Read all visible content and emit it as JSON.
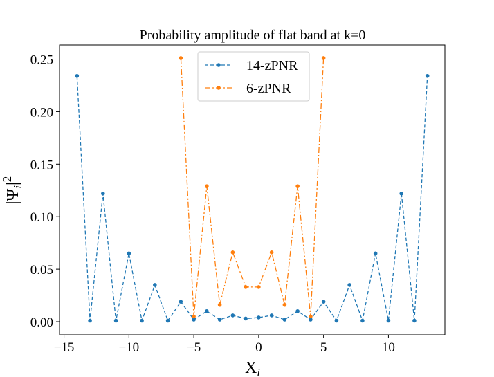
{
  "chart_data": {
    "type": "line",
    "title": "Probability amplitude of flat band at k=0",
    "xlabel": "X",
    "xlabel_sub": "i",
    "ylabel_main": "|Ψ",
    "ylabel_sub": "i",
    "ylabel_pipe": "|",
    "ylabel_sup": "2",
    "xlim": [
      -15.35,
      14.35
    ],
    "ylim": [
      -0.0125,
      0.2635
    ],
    "xticks": [
      -15,
      -10,
      -5,
      0,
      5,
      10
    ],
    "xtick_labels": [
      "−15",
      "−10",
      "−5",
      "0",
      "5",
      "10"
    ],
    "yticks": [
      0.0,
      0.05,
      0.1,
      0.15,
      0.2,
      0.25
    ],
    "ytick_labels": [
      "0.00",
      "0.05",
      "0.10",
      "0.15",
      "0.20",
      "0.25"
    ],
    "grid": false,
    "legend_position": "top-center",
    "series": [
      {
        "name": "14-zPNR",
        "color": "#1f77b4",
        "linestyle": "dashed",
        "x": [
          -14,
          -13,
          -12,
          -11,
          -10,
          -9,
          -8,
          -7,
          -6,
          -5,
          -4,
          -3,
          -2,
          -1,
          0,
          1,
          2,
          3,
          4,
          5,
          6,
          7,
          8,
          9,
          10,
          11,
          12,
          13
        ],
        "y": [
          0.234,
          0.001,
          0.122,
          0.001,
          0.065,
          0.001,
          0.035,
          0.001,
          0.019,
          0.002,
          0.01,
          0.002,
          0.006,
          0.003,
          0.004,
          0.006,
          0.002,
          0.01,
          0.002,
          0.019,
          0.001,
          0.035,
          0.001,
          0.065,
          0.001,
          0.122,
          0.001,
          0.234
        ]
      },
      {
        "name": "6-zPNR",
        "color": "#ff7f0e",
        "linestyle": "dashdot",
        "x": [
          -6,
          -5,
          -4,
          -3,
          -2,
          -1,
          0,
          1,
          2,
          3,
          4,
          5
        ],
        "y": [
          0.251,
          0.005,
          0.129,
          0.016,
          0.066,
          0.033,
          0.033,
          0.066,
          0.016,
          0.129,
          0.005,
          0.251
        ]
      }
    ]
  }
}
